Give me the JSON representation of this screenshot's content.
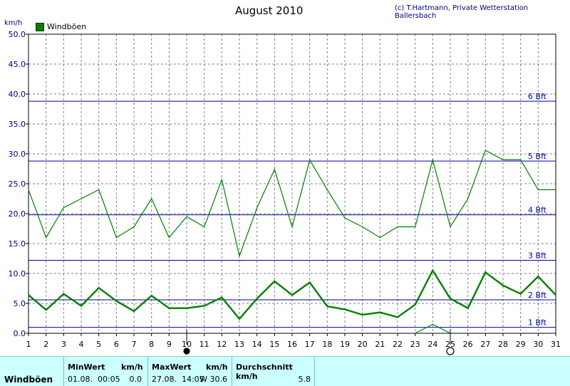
{
  "chart_data": {
    "type": "line",
    "title": "August 2010",
    "credit": "(c) T.Hartmann, Private Wetterstation Ballersbach",
    "ylabel": "km/h",
    "ylim": [
      0,
      50
    ],
    "yticks": [
      "0.0",
      "5.0",
      "10.0",
      "15.0",
      "20.0",
      "25.0",
      "30.0",
      "35.0",
      "40.0",
      "45.0",
      "50.0"
    ],
    "x": [
      1,
      2,
      3,
      4,
      5,
      6,
      7,
      8,
      9,
      10,
      11,
      12,
      13,
      14,
      15,
      16,
      17,
      18,
      19,
      20,
      21,
      22,
      23,
      24,
      25,
      26,
      27,
      28,
      29,
      30,
      31
    ],
    "grid": true,
    "legend": "top-left",
    "series": [
      {
        "name": "Windböen",
        "role": "max",
        "color": "#008000",
        "values": [
          24.0,
          16.0,
          21.0,
          22.5,
          24.0,
          16.0,
          17.8,
          22.5,
          16.0,
          19.5,
          17.8,
          25.7,
          12.9,
          21.0,
          27.4,
          17.8,
          29.0,
          24.0,
          19.3,
          17.8,
          16.0,
          17.8,
          17.8,
          29.0,
          17.8,
          22.5,
          30.6,
          29.0,
          29.0,
          24.0,
          24.0
        ]
      },
      {
        "name": "Windböen",
        "role": "avg",
        "color": "#008000",
        "values": [
          6.4,
          3.9,
          6.6,
          4.6,
          7.6,
          5.4,
          3.7,
          6.3,
          4.2,
          4.2,
          4.6,
          6.0,
          2.4,
          5.8,
          8.7,
          6.4,
          8.5,
          4.5,
          4.0,
          3.1,
          3.5,
          2.7,
          4.8,
          10.5,
          5.8,
          4.2,
          10.2,
          8.0,
          6.6,
          9.5,
          6.4
        ]
      },
      {
        "name": "",
        "role": "min",
        "color": "#008000",
        "x": [
          23,
          24,
          25
        ],
        "values": [
          0.0,
          1.5,
          0.0
        ]
      }
    ],
    "beaufort": [
      {
        "label": "1 Bft",
        "value": 1.0
      },
      {
        "label": "2 Bft",
        "value": 5.6
      },
      {
        "label": "3 Bft",
        "value": 12.2
      },
      {
        "label": "4 Bft",
        "value": 19.8
      },
      {
        "label": "5 Bft",
        "value": 28.8
      },
      {
        "label": "6 Bft",
        "value": 38.8
      }
    ],
    "moon_phases": [
      {
        "day": 10,
        "phase": "new-moon"
      },
      {
        "day": 25,
        "phase": "full-moon"
      }
    ]
  },
  "colors": {
    "axis": "#000000",
    "grid": "#808080",
    "beaufort": "#0000aa",
    "label": "#000080",
    "series": "#008000"
  },
  "table": {
    "row_label": "Windböen",
    "min": {
      "header": "MinWert",
      "unit": "km/h",
      "datetime": "01.08.  00:05",
      "value": "0.0"
    },
    "max": {
      "header": "MaxWert",
      "unit": "km/h",
      "datetime": "27.08.  14:05",
      "value": "W 30.6"
    },
    "avg": {
      "header": "Durchschnitt km/h",
      "value": "5.8"
    }
  }
}
